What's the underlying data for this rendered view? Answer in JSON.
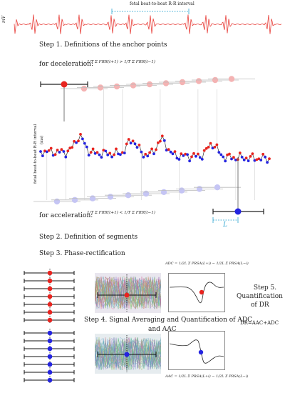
{
  "ecg": {
    "ylabel": "mV",
    "interval_label": "fetal beat-to-beat R-R interval"
  },
  "step1": {
    "title": "Step 1. Definitions of the anchor points",
    "for_deceleration": "for deceleration:",
    "for_acceleration": "for acceleration:",
    "dec_formula": "1/T Σ FRR(t+1) > 1/T Σ FRR(t−1)",
    "acc_formula": "1/T Σ FRR(t+1) < 1/T Σ FRR(t−1)",
    "ylabel_line1": "fetal beat-to-beat R-R interval",
    "ylabel_line2": "(ms)",
    "L_label": "L"
  },
  "step2": {
    "title": "Step 2. Definition of segments"
  },
  "step3": {
    "title": "Step 3. Phase-rectification"
  },
  "step4": {
    "title_line1": "Step 4. Signal Averaging and Quantification of ADC",
    "title_line2": "and AAC"
  },
  "step5": {
    "line1": "Step 5.",
    "line2": "Quantification",
    "line3": "of DR",
    "equation": "DR=AAC+ADC"
  },
  "adc_formula": "ADC = 1/2L Σ PRSA(L+i) − 1/2L Σ PRSA(L−i)",
  "aac_formula": "AAC = 1/2L Σ PRSA(L+i) − 1/2L Σ PRSA(L−i)",
  "colors": {
    "ecg": "#e8413c",
    "dec": "#e8241f",
    "acc": "#2424e0",
    "interval": "#29a3d0",
    "ghost_dec": "#f4b3b3",
    "ghost_acc": "#c5c5f4"
  }
}
